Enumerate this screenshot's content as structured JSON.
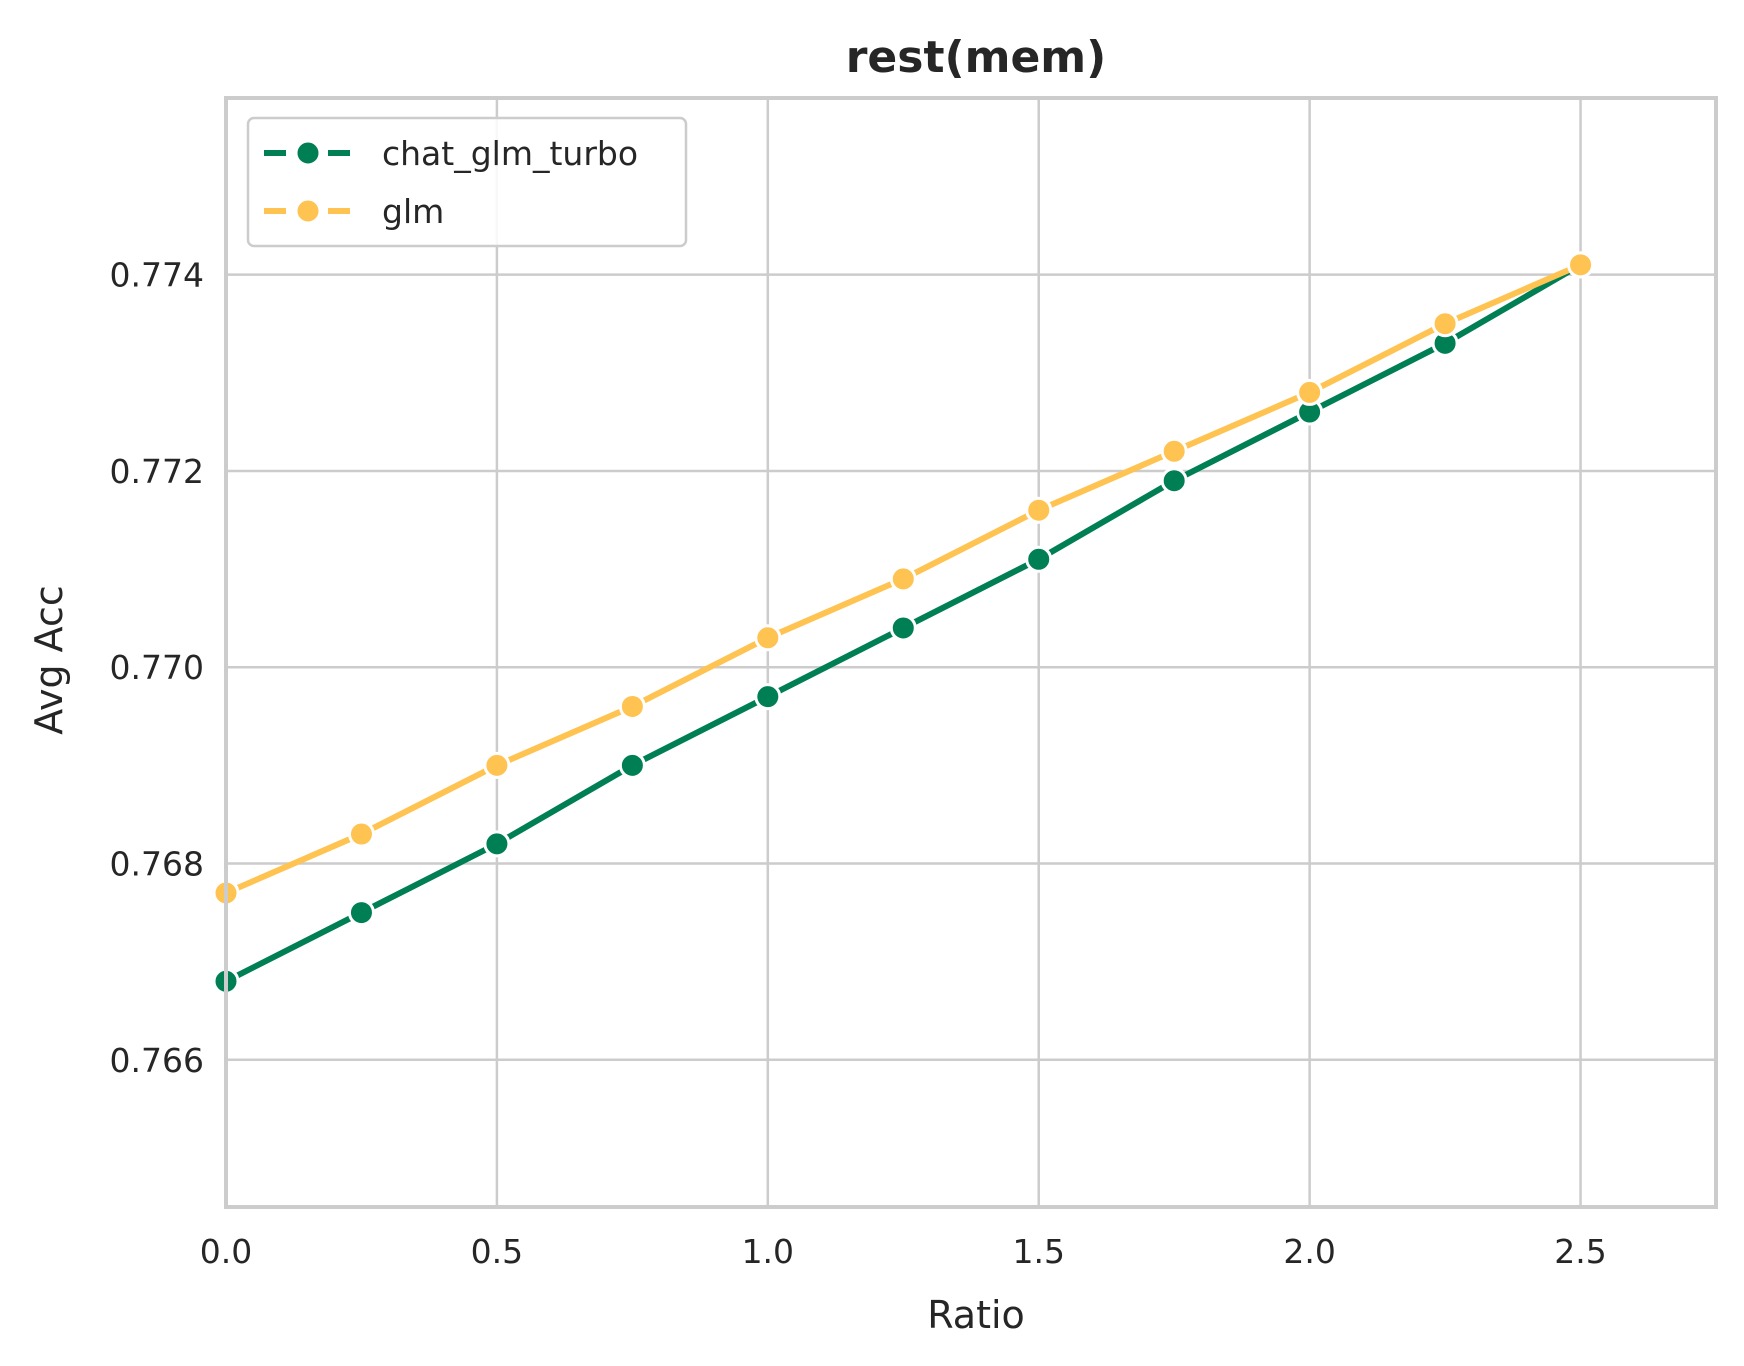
{
  "chart_data": {
    "type": "line",
    "title": "rest(mem)",
    "xlabel": "Ratio",
    "ylabel": "Avg Acc",
    "xlim": [
      0.0,
      2.75
    ],
    "ylim": [
      0.7645,
      0.7758
    ],
    "xticks": [
      0.0,
      0.5,
      1.0,
      1.5,
      2.0,
      2.5
    ],
    "xtick_labels": [
      "0.0",
      "0.5",
      "1.0",
      "1.5",
      "2.0",
      "2.5"
    ],
    "yticks": [
      0.766,
      0.768,
      0.77,
      0.772,
      0.774
    ],
    "ytick_labels": [
      "0.766",
      "0.768",
      "0.770",
      "0.772",
      "0.774"
    ],
    "grid": true,
    "legend_position": "top-left",
    "x": [
      0.0,
      0.25,
      0.5,
      0.75,
      1.0,
      1.25,
      1.5,
      1.75,
      2.0,
      2.25,
      2.5
    ],
    "series": [
      {
        "name": "chat_glm_turbo",
        "color": "#007f54",
        "values": [
          0.7668,
          0.7675,
          0.7682,
          0.769,
          0.7697,
          0.7704,
          0.7711,
          0.7719,
          0.7726,
          0.7733,
          0.7741
        ]
      },
      {
        "name": "glm",
        "color": "#ffc352",
        "values": [
          0.7677,
          0.7683,
          0.769,
          0.7696,
          0.7703,
          0.7709,
          0.7716,
          0.7722,
          0.7728,
          0.7735,
          0.7741
        ]
      }
    ]
  }
}
